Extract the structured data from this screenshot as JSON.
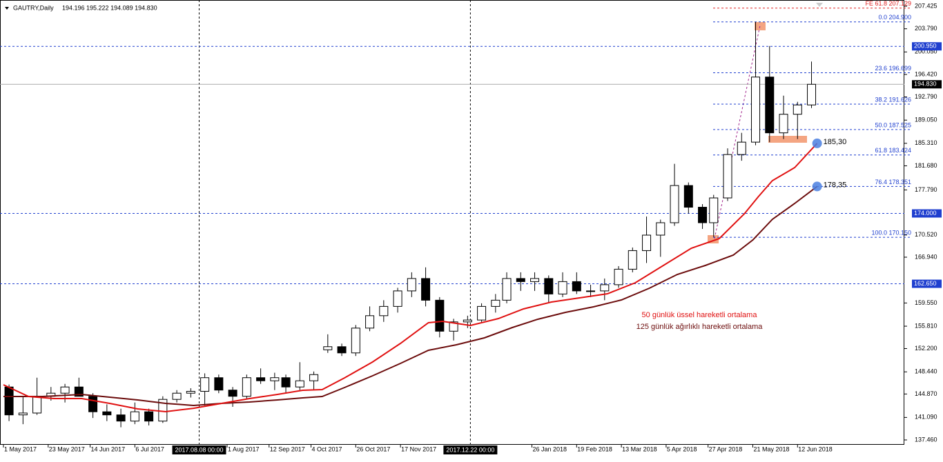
{
  "chart_data": {
    "type": "candlestick",
    "title": "GAUTRY,Daily",
    "ohlc_text": "194.196 195.222 194.089 194.830",
    "xlim": [
      -1.23,
      322.2
    ],
    "ylim": [
      136.68,
      208.43
    ],
    "yticks": [
      {
        "value": 207.425,
        "label": "207.425"
      },
      {
        "value": 203.79,
        "label": "203.790"
      },
      {
        "value": 200.05,
        "label": "200.050"
      },
      {
        "value": 196.42,
        "label": "196.420"
      },
      {
        "value": 192.79,
        "label": "192.790"
      },
      {
        "value": 189.05,
        "label": "189.050"
      },
      {
        "value": 185.31,
        "label": "185.310"
      },
      {
        "value": 181.68,
        "label": "181.680"
      },
      {
        "value": 177.79,
        "label": "177.790"
      },
      {
        "value": 170.52,
        "label": "170.520"
      },
      {
        "value": 166.94,
        "label": "166.940"
      },
      {
        "value": 159.55,
        "label": "159.550"
      },
      {
        "value": 155.81,
        "label": "155.810"
      },
      {
        "value": 152.2,
        "label": "152.200"
      },
      {
        "value": 148.44,
        "label": "148.440"
      },
      {
        "value": 144.87,
        "label": "144.870"
      },
      {
        "value": 141.09,
        "label": "141.090"
      },
      {
        "value": 137.46,
        "label": "137.460"
      }
    ],
    "xticks": [
      {
        "value": 0,
        "label": "1 May 2017"
      },
      {
        "value": 16,
        "label": "23 May 2017"
      },
      {
        "value": 31,
        "label": "14 Jun 2017"
      },
      {
        "value": 47,
        "label": "6 Jul 2017"
      },
      {
        "value": 80,
        "label": "1 Aug 2017"
      },
      {
        "value": 95,
        "label": "12 Sep 2017"
      },
      {
        "value": 110,
        "label": "4 Oct 2017"
      },
      {
        "value": 126,
        "label": "26 Oct 2017"
      },
      {
        "value": 142,
        "label": "17 Nov 2017"
      },
      {
        "value": 189,
        "label": "26 Jan 2018"
      },
      {
        "value": 205,
        "label": "19 Feb 2018"
      },
      {
        "value": 221,
        "label": "13 Mar 2018"
      },
      {
        "value": 237,
        "label": "5 Apr 2018"
      },
      {
        "value": 252,
        "label": "27 Apr 2018"
      },
      {
        "value": 268,
        "label": "21 May 2018"
      },
      {
        "value": 284,
        "label": "12 Jun 2018"
      }
    ],
    "vlines": [
      {
        "value": 70,
        "label": "2017.08.08 00:00"
      },
      {
        "value": 167,
        "label": "2017.12.22 00:00"
      }
    ],
    "hlines": [
      {
        "value": 200.95,
        "label": "200.950",
        "color": "#1f3fcf"
      },
      {
        "value": 174.0,
        "label": "174.000",
        "color": "#1f3fcf"
      },
      {
        "value": 162.65,
        "label": "162.650",
        "color": "#1f3fcf"
      },
      {
        "value": 194.83,
        "label": "194.830",
        "color": "#000000"
      }
    ],
    "fibo_levels": [
      {
        "value": 207.129,
        "label": "FE 61.8 207.129",
        "color": "#e02020"
      },
      {
        "value": 204.9,
        "label": "0.0 204.900",
        "color": "#1f3fcf"
      },
      {
        "value": 196.699,
        "label": "23.6 196.699",
        "color": "#1f3fcf"
      },
      {
        "value": 191.626,
        "label": "38.2 191.626",
        "color": "#1f3fcf"
      },
      {
        "value": 187.525,
        "label": "50.0 187.525",
        "color": "#1f3fcf"
      },
      {
        "value": 183.424,
        "label": "61.8 183.424",
        "color": "#1f3fcf"
      },
      {
        "value": 178.351,
        "label": "76.4 178.351",
        "color": "#1f3fcf"
      },
      {
        "value": 170.15,
        "label": "100.0 170.150",
        "color": "#1f3fcf"
      }
    ],
    "candles": {
      "x": [
        2,
        7,
        12,
        17,
        22,
        27,
        32,
        37,
        42,
        47,
        52,
        57,
        62,
        67,
        72,
        77,
        82,
        87,
        92,
        97,
        101,
        106,
        111,
        116,
        121,
        126,
        131,
        136,
        141,
        146,
        151,
        156,
        161,
        166,
        171,
        176,
        180,
        185,
        190,
        195,
        200,
        205,
        210,
        215,
        220,
        225,
        230,
        235,
        240,
        245,
        250,
        254,
        259,
        264,
        269,
        274,
        279,
        284,
        289
      ],
      "open": [
        146.0,
        141.5,
        141.8,
        144.5,
        145.0,
        146.0,
        144.5,
        142.0,
        141.5,
        140.5,
        142.0,
        140.5,
        144.0,
        145.0,
        145.3,
        147.5,
        145.5,
        144.5,
        147.5,
        147.0,
        147.5,
        146.0,
        147.0,
        152.0,
        152.5,
        151.5,
        155.5,
        157.5,
        159.0,
        161.5,
        163.5,
        160.0,
        155.0,
        156.5,
        156.8,
        159.0,
        160.0,
        163.5,
        163.0,
        163.5,
        161.0,
        163.0,
        161.5,
        161.5,
        162.5,
        165.0,
        168.0,
        170.5,
        172.5,
        178.5,
        175.0,
        172.5,
        176.5,
        183.5,
        185.5,
        196.0,
        187.0,
        190.0,
        191.5
      ],
      "high": [
        146.4,
        144.5,
        147.5,
        146.0,
        146.5,
        147.5,
        145.0,
        143.2,
        142.5,
        143.5,
        142.5,
        144.5,
        145.5,
        145.8,
        148.2,
        148.0,
        146.0,
        148.0,
        149.0,
        148.3,
        148.0,
        150.0,
        148.5,
        154.5,
        153.0,
        156.0,
        159.0,
        160.0,
        162.0,
        164.5,
        165.3,
        160.5,
        157.0,
        157.5,
        159.5,
        161.0,
        164.5,
        164.5,
        164.5,
        164.0,
        164.5,
        164.5,
        162.5,
        163.5,
        165.5,
        168.5,
        173.5,
        173.0,
        182.0,
        179.0,
        175.5,
        177.0,
        184.5,
        187.0,
        204.9,
        201.0,
        193.0,
        192.0,
        198.5
      ],
      "low": [
        140.5,
        140.0,
        141.5,
        143.8,
        143.5,
        144.5,
        141.0,
        140.5,
        139.5,
        140.0,
        139.8,
        140.2,
        143.5,
        144.3,
        143.0,
        145.0,
        142.8,
        144.0,
        146.5,
        145.5,
        145.0,
        145.5,
        145.5,
        151.5,
        151.0,
        151.0,
        155.0,
        156.5,
        158.0,
        160.5,
        159.0,
        154.0,
        153.5,
        155.5,
        156.5,
        158.0,
        159.5,
        161.5,
        161.5,
        159.5,
        160.5,
        161.0,
        160.5,
        160.0,
        162.0,
        164.5,
        166.0,
        167.0,
        172.0,
        174.0,
        171.5,
        170.2,
        176.0,
        182.5,
        185.0,
        185.5,
        186.0,
        186.0,
        191.0
      ],
      "close": [
        141.5,
        141.8,
        144.5,
        145.0,
        146.0,
        144.5,
        142.0,
        141.5,
        140.5,
        142.0,
        140.5,
        144.0,
        145.0,
        145.3,
        147.5,
        145.5,
        144.5,
        147.5,
        147.0,
        147.5,
        146.0,
        147.0,
        148.0,
        152.5,
        151.5,
        155.5,
        157.5,
        159.0,
        161.5,
        163.5,
        160.0,
        155.0,
        156.5,
        156.8,
        159.0,
        160.0,
        163.5,
        163.0,
        163.5,
        161.0,
        163.0,
        161.5,
        161.5,
        162.5,
        165.0,
        168.0,
        170.5,
        172.5,
        178.5,
        175.0,
        172.5,
        176.5,
        183.5,
        185.5,
        196.0,
        187.0,
        190.0,
        191.5,
        194.83
      ]
    },
    "series": [
      {
        "name": "125 günlük ağırlıklı hareketli ortalama",
        "color": "#6b0b0b",
        "x": [
          0,
          14,
          28,
          38,
          48,
          58,
          68,
          78,
          88,
          98,
          107,
          114,
          122,
          132,
          142,
          152,
          162,
          172,
          182,
          191,
          201,
          211,
          221,
          231,
          241,
          251,
          261,
          268,
          275,
          283,
          291
        ],
        "values": [
          144.47,
          144.47,
          144.8,
          144.36,
          143.91,
          143.35,
          143.02,
          143.35,
          143.58,
          143.91,
          144.24,
          144.47,
          145.91,
          147.8,
          149.81,
          151.92,
          152.81,
          153.92,
          155.59,
          156.92,
          158.04,
          158.93,
          160.04,
          161.93,
          164.16,
          165.6,
          167.27,
          169.72,
          173.05,
          175.61,
          178.35
        ]
      },
      {
        "name": "50 günlük üssel hareketli ortalama",
        "color": "#e01010",
        "x": [
          0,
          9,
          18,
          28,
          38,
          48,
          58,
          68,
          78,
          88,
          98,
          107,
          114,
          122,
          132,
          142,
          152,
          157,
          167,
          177,
          186,
          196,
          206,
          216,
          226,
          236,
          246,
          256,
          265,
          270,
          275,
          283,
          291
        ],
        "values": [
          146.36,
          144.47,
          144.13,
          144.13,
          143.35,
          142.46,
          142.02,
          142.57,
          143.35,
          144.13,
          144.8,
          145.47,
          145.58,
          147.47,
          150.03,
          153.03,
          156.37,
          156.59,
          155.92,
          157.04,
          158.59,
          159.71,
          160.37,
          161.04,
          162.82,
          165.6,
          168.38,
          169.94,
          173.94,
          176.72,
          179.28,
          181.4,
          185.3
        ]
      }
    ],
    "markers": [
      {
        "x": 291,
        "value": 185.3,
        "label": "185,30"
      },
      {
        "x": 291,
        "value": 178.35,
        "label": "178,35"
      }
    ]
  }
}
